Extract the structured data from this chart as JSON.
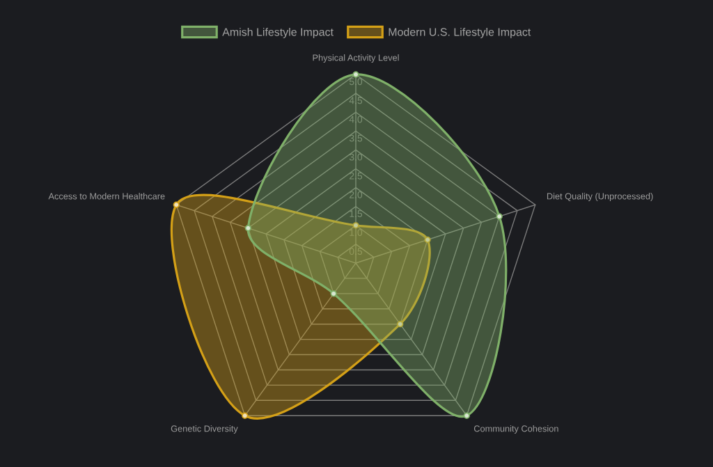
{
  "chart_data": {
    "type": "radar",
    "categories": [
      "Physical Activity Level",
      "Diet Quality (Unprocessed)",
      "Community Cohesion",
      "Genetic Diversity",
      "Access to Modern Healthcare"
    ],
    "series": [
      {
        "name": "Amish Lifestyle Impact",
        "color": "#7fb069",
        "values": [
          5,
          4,
          5,
          1,
          3
        ]
      },
      {
        "name": "Modern U.S. Lifestyle Impact",
        "color": "#d4a017",
        "values": [
          1,
          2,
          2,
          5,
          5
        ]
      }
    ],
    "ylim": [
      0,
      5
    ],
    "yticks": [
      0.5,
      {
        "value": 1,
        "label": "1.0"
      },
      1.5,
      {
        "value": 2,
        "label": "2.0"
      },
      2.5,
      {
        "value": 3,
        "label": "3.0"
      },
      3.5,
      {
        "value": 4,
        "label": "4.0"
      },
      4.5,
      {
        "value": 5,
        "label": "5.0"
      }
    ],
    "grid": true,
    "legend": "top",
    "marker": "circle"
  }
}
